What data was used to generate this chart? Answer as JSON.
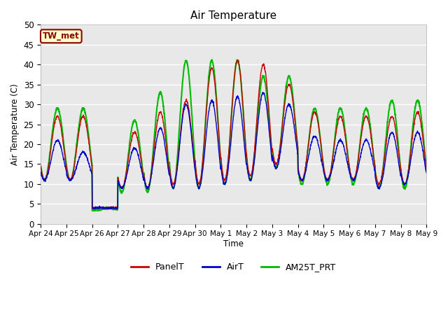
{
  "title": "Air Temperature",
  "ylabel": "Air Temperature (C)",
  "xlabel": "Time",
  "ylim": [
    0,
    50
  ],
  "yticks": [
    0,
    5,
    10,
    15,
    20,
    25,
    30,
    35,
    40,
    45,
    50
  ],
  "xtick_labels": [
    "Apr 24",
    "Apr 25",
    "Apr 26",
    "Apr 27",
    "Apr 28",
    "Apr 29",
    "Apr 30",
    "May 1",
    "May 2",
    "May 3",
    "May 4",
    "May 5",
    "May 6",
    "May 7",
    "May 8",
    "May 9"
  ],
  "fig_bg_color": "#ffffff",
  "plot_bg_color": "#e8e8e8",
  "grid_color": "#ffffff",
  "legend_label": "TW_met",
  "line_colors": {
    "PanelT": "#cc0000",
    "AirT": "#0000cc",
    "AM25T_PRT": "#00bb00"
  },
  "line_widths": {
    "PanelT": 1.0,
    "AirT": 1.0,
    "AM25T_PRT": 1.5
  },
  "panel_peaks": [
    27,
    27,
    4,
    23,
    28,
    31,
    39,
    41,
    40,
    35,
    28,
    27,
    27,
    27,
    28
  ],
  "panel_troughs": [
    11,
    11,
    4,
    9,
    9,
    10,
    10,
    11,
    12,
    15,
    11,
    11,
    11,
    10,
    10
  ],
  "air_peaks": [
    21,
    18,
    4,
    19,
    24,
    30,
    31,
    32,
    33,
    30,
    22,
    21,
    21,
    23,
    23
  ],
  "air_troughs": [
    11,
    11,
    4,
    9,
    9,
    9,
    9,
    10,
    11,
    14,
    11,
    11,
    11,
    9,
    10
  ],
  "am25_peaks": [
    29,
    29,
    4,
    26,
    33,
    41,
    41,
    41,
    37,
    37,
    29,
    29,
    29,
    31,
    31
  ],
  "am25_troughs": [
    11,
    11,
    3.5,
    8,
    8,
    9,
    9,
    10,
    11,
    14,
    10,
    10,
    10,
    9,
    9
  ]
}
